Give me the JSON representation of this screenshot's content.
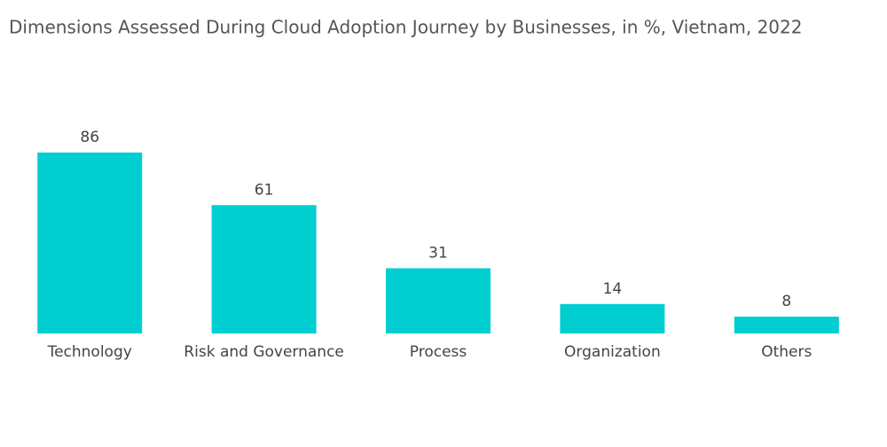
{
  "chart_data": {
    "type": "bar",
    "title": "Dimensions Assessed During Cloud Adoption Journey by Businesses, in %, Vietnam, 2022",
    "categories": [
      "Technology",
      "Risk and Governance",
      "Process",
      "Organization",
      "Others"
    ],
    "values": [
      86,
      61,
      31,
      14,
      8
    ],
    "color": "#00ced1"
  }
}
